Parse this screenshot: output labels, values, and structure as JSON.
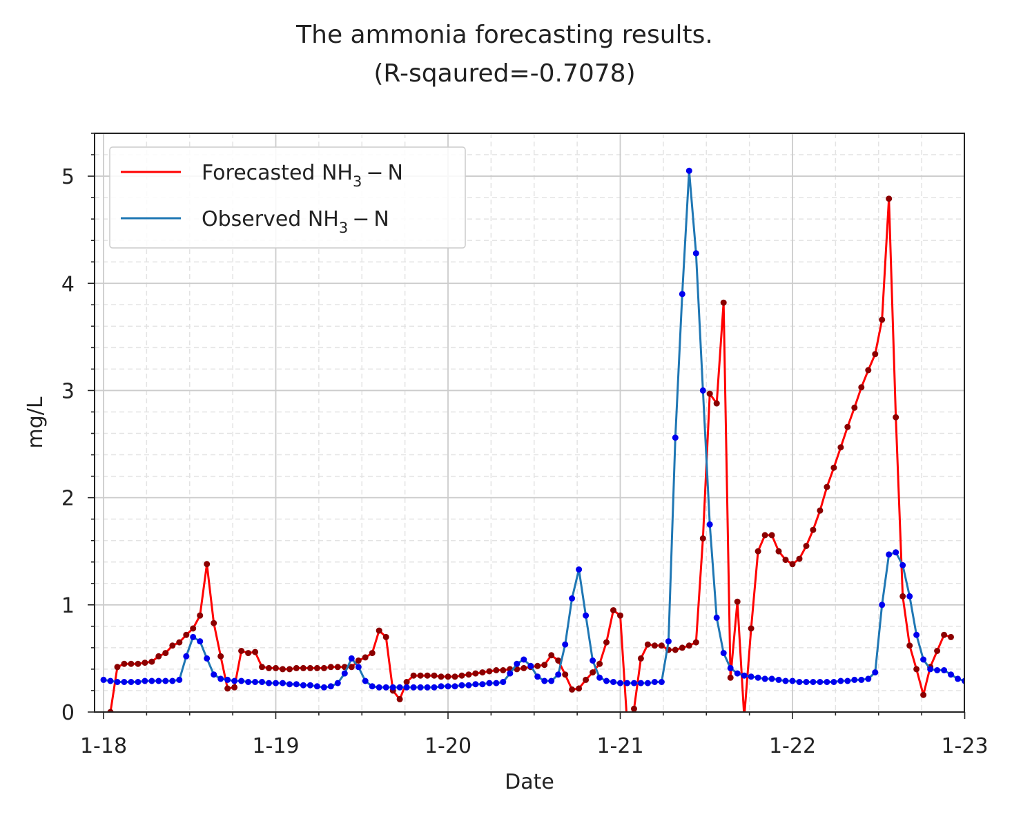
{
  "chart_data": {
    "type": "line",
    "title_line1": "The ammonia forecasting results.",
    "title_line2": "(R-sqaured=-0.7078)",
    "xlabel": "Date",
    "ylabel": "mg/L",
    "x_tick_labels": [
      "1-18",
      "1-19",
      "1-20",
      "1-21",
      "1-22",
      "1-23"
    ],
    "y_tick_labels": [
      "0",
      "1",
      "2",
      "3",
      "4",
      "5"
    ],
    "xlim": [
      -0.05,
      5.0
    ],
    "ylim": [
      0,
      5.4
    ],
    "grid": true,
    "legend_placement": "top-left",
    "series": [
      {
        "name": "Forecasted NH3 - N",
        "legend_main": "Forecasted NH",
        "legend_sub": "3",
        "legend_tail": " − N",
        "color": "#ff0000",
        "marker_color": "#8b0000",
        "x_start": 0.04,
        "x_step": 0.04,
        "values": [
          0.0,
          0.42,
          0.45,
          0.45,
          0.45,
          0.46,
          0.47,
          0.52,
          0.55,
          0.62,
          0.65,
          0.72,
          0.78,
          0.9,
          1.38,
          0.83,
          0.52,
          0.22,
          0.23,
          0.57,
          0.55,
          0.56,
          0.42,
          0.41,
          0.41,
          0.4,
          0.4,
          0.41,
          0.41,
          0.41,
          0.41,
          0.41,
          0.42,
          0.42,
          0.42,
          0.42,
          0.48,
          0.51,
          0.55,
          0.76,
          0.7,
          0.2,
          0.12,
          0.28,
          0.34,
          0.34,
          0.34,
          0.34,
          0.33,
          0.33,
          0.33,
          0.34,
          0.35,
          0.36,
          0.37,
          0.38,
          0.39,
          0.39,
          0.4,
          0.4,
          0.41,
          0.42,
          0.43,
          0.44,
          0.53,
          0.48,
          0.35,
          0.21,
          0.22,
          0.3,
          0.37,
          0.45,
          0.65,
          0.95,
          0.9,
          -0.1,
          0.03,
          0.5,
          0.63,
          0.62,
          0.62,
          0.58,
          0.58,
          0.6,
          0.62,
          0.65,
          1.62,
          2.97,
          2.88,
          3.82,
          0.32,
          1.03,
          -0.05,
          0.78,
          1.5,
          1.65,
          1.65,
          1.5,
          1.42,
          1.38,
          1.43,
          1.55,
          1.7,
          1.88,
          2.1,
          2.28,
          2.47,
          2.66,
          2.84,
          3.03,
          3.19,
          3.34,
          3.66,
          4.79,
          2.75,
          1.08,
          0.62,
          0.4,
          0.16,
          0.42,
          0.57,
          0.72,
          0.7
        ]
      },
      {
        "name": "Observed NH3 - N",
        "legend_main": "Observed NH",
        "legend_sub": "3",
        "legend_tail": " − N",
        "color": "#1f77b4",
        "marker_color": "#0000ee",
        "x_start": 0.0,
        "x_step": 0.04,
        "values": [
          0.3,
          0.29,
          0.28,
          0.28,
          0.28,
          0.28,
          0.29,
          0.29,
          0.29,
          0.29,
          0.29,
          0.3,
          0.52,
          0.7,
          0.66,
          0.5,
          0.35,
          0.31,
          0.3,
          0.29,
          0.29,
          0.28,
          0.28,
          0.28,
          0.27,
          0.27,
          0.27,
          0.26,
          0.26,
          0.25,
          0.25,
          0.24,
          0.23,
          0.24,
          0.27,
          0.36,
          0.5,
          0.42,
          0.29,
          0.24,
          0.23,
          0.23,
          0.23,
          0.23,
          0.23,
          0.23,
          0.23,
          0.23,
          0.23,
          0.24,
          0.24,
          0.24,
          0.25,
          0.25,
          0.26,
          0.26,
          0.27,
          0.27,
          0.28,
          0.36,
          0.45,
          0.49,
          0.43,
          0.33,
          0.29,
          0.29,
          0.35,
          0.63,
          1.06,
          1.33,
          0.9,
          0.48,
          0.32,
          0.29,
          0.28,
          0.27,
          0.27,
          0.27,
          0.27,
          0.27,
          0.28,
          0.28,
          0.66,
          2.56,
          3.9,
          5.05,
          4.28,
          3.0,
          1.75,
          0.88,
          0.55,
          0.41,
          0.36,
          0.34,
          0.33,
          0.32,
          0.31,
          0.31,
          0.3,
          0.29,
          0.29,
          0.28,
          0.28,
          0.28,
          0.28,
          0.28,
          0.28,
          0.29,
          0.29,
          0.3,
          0.3,
          0.31,
          0.37,
          1.0,
          1.47,
          1.49,
          1.37,
          1.08,
          0.72,
          0.49,
          0.4,
          0.39,
          0.39,
          0.35,
          0.31,
          0.29
        ]
      }
    ]
  }
}
